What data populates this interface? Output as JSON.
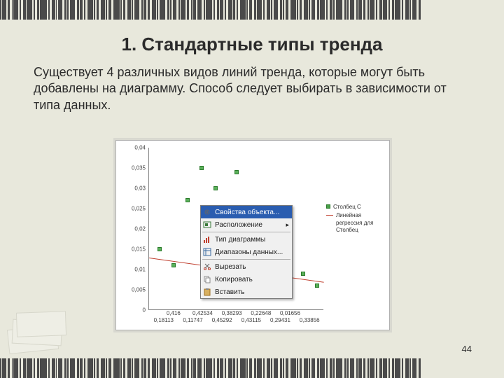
{
  "title": "1. Стандартные типы тренда",
  "body": "Существует 4 различных видов линий тренда, которые могут быть добавлены на диаграмму. Способ следует выбирать в зависимости от типа данных.",
  "page_number": "44",
  "barcode": {
    "bar_color": "#4a4a4a",
    "widths": [
      2,
      6,
      3,
      1,
      7,
      2,
      4,
      8,
      2,
      3,
      10,
      2,
      5,
      1,
      6,
      3,
      2,
      7,
      3,
      4,
      2,
      8,
      2,
      3,
      6,
      2,
      4,
      9,
      2,
      3,
      5,
      2,
      7,
      2,
      4,
      3,
      6,
      2,
      8,
      3,
      2,
      5,
      2,
      7,
      3,
      2,
      4,
      6,
      2,
      9,
      2,
      3,
      5,
      2,
      6,
      3,
      2,
      8,
      2,
      4,
      3,
      7,
      2,
      5,
      2,
      6,
      3,
      2,
      4,
      8,
      2,
      3,
      6,
      2,
      5,
      3,
      7,
      2,
      4,
      2,
      9,
      3,
      2,
      6,
      2,
      5,
      3,
      2,
      7,
      2,
      4,
      6,
      2,
      3,
      8,
      2,
      5,
      2,
      6,
      3
    ]
  },
  "chart": {
    "type": "scatter",
    "background_color": "#ffffff",
    "border_color": "#b0b0b0",
    "axis_color": "#808080",
    "tick_font_size": 8,
    "tick_color": "#404040",
    "ylim": [
      0,
      0.04
    ],
    "ytick_step": 0.005,
    "yticks": [
      "0",
      "0,005",
      "0,01",
      "0,015",
      "0,02",
      "0,025",
      "0,03",
      "0,035",
      "0,04"
    ],
    "xticks_top": [
      "0,416",
      "0,42534",
      "0,38293",
      "0,22648",
      "0,01656",
      ""
    ],
    "xticks_bottom": [
      "0,18113",
      "0,11747",
      "0,45292",
      "0,43115",
      "0,29431",
      "0,33856"
    ],
    "marker": {
      "size": 6,
      "fill": "#5ab05a",
      "border": "#2a7a2a"
    },
    "points": [
      {
        "x": 0.06,
        "y": 0.015
      },
      {
        "x": 0.14,
        "y": 0.011
      },
      {
        "x": 0.22,
        "y": 0.027
      },
      {
        "x": 0.3,
        "y": 0.035
      },
      {
        "x": 0.38,
        "y": 0.03
      },
      {
        "x": 0.44,
        "y": 0.007
      },
      {
        "x": 0.5,
        "y": 0.034
      },
      {
        "x": 0.58,
        "y": 0.013
      },
      {
        "x": 0.66,
        "y": 0.006
      },
      {
        "x": 0.74,
        "y": 0.004
      },
      {
        "x": 0.8,
        "y": 0.008
      },
      {
        "x": 0.88,
        "y": 0.009
      },
      {
        "x": 0.96,
        "y": 0.006
      }
    ],
    "trend": {
      "color": "#c04030",
      "y_start": 0.013,
      "y_end": 0.007
    }
  },
  "legend": {
    "series_label": "Столбец C",
    "trend_label": "Линейная регрессия для Столбец"
  },
  "context_menu": {
    "bg": "#f0f0f0",
    "border": "#7a7a7a",
    "highlight": "#2a5db0",
    "items": [
      {
        "label": "Свойства объекта...",
        "icon": "gear-icon",
        "selected": true
      },
      {
        "label": "Расположение",
        "icon": "layout-icon",
        "submenu": true
      },
      {
        "sep": true
      },
      {
        "label": "Тип диаграммы",
        "icon": "chart-type-icon"
      },
      {
        "label": "Диапазоны данных...",
        "icon": "range-icon"
      },
      {
        "sep": true
      },
      {
        "label": "Вырезать",
        "icon": "cut-icon"
      },
      {
        "label": "Копировать",
        "icon": "copy-icon"
      },
      {
        "label": "Вставить",
        "icon": "paste-icon"
      }
    ]
  }
}
